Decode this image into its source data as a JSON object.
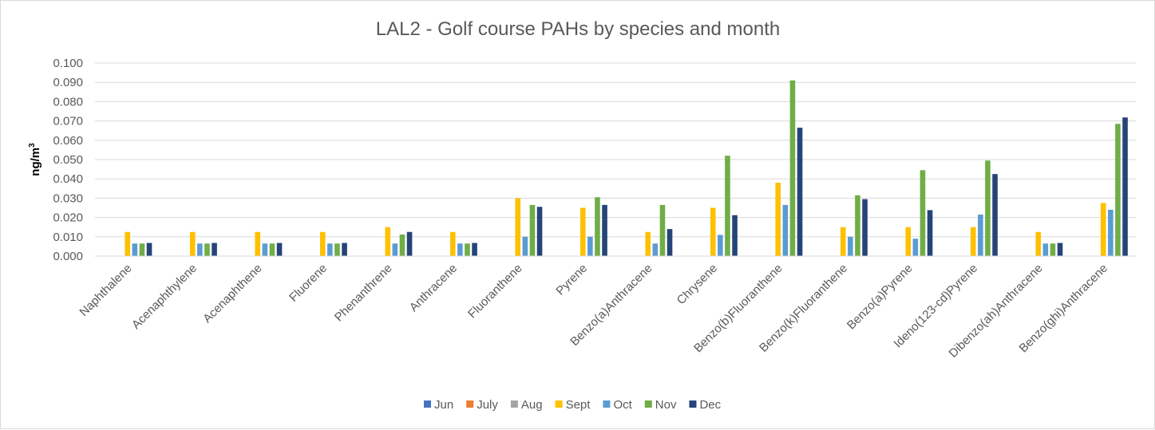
{
  "chart_data": {
    "type": "bar",
    "title": "LAL2 - Golf course PAHs by species and month",
    "xlabel": "",
    "ylabel": "ng/m",
    "ylabel_sup": "3",
    "ylim": [
      0,
      0.1
    ],
    "yticks": [
      "0.000",
      "0.010",
      "0.020",
      "0.030",
      "0.040",
      "0.050",
      "0.060",
      "0.070",
      "0.080",
      "0.090",
      "0.100"
    ],
    "ytick_values": [
      0,
      0.01,
      0.02,
      0.03,
      0.04,
      0.05,
      0.06,
      0.07,
      0.08,
      0.09,
      0.1
    ],
    "grid": true,
    "legend_position": "bottom",
    "categories": [
      "Naphthalene",
      "Acenaphthylene",
      "Acenaphthene",
      "Fluorene",
      "Phenanthrene",
      "Anthracene",
      "Fluoranthene",
      "Pyrene",
      "Benzo(a)Anthracene",
      "Chrysene",
      "Benzo(b)Fluoranthene",
      "Benzo(k)Fluoranthene",
      "Benzo(a)Pyrene",
      "Ideno(123-cd)Pyrene",
      "Dibenzo(ah)Anthracene",
      "Benzo(ghi)Anthracene"
    ],
    "series": [
      {
        "name": "Jun",
        "color": "#4472c4",
        "values": [
          null,
          null,
          null,
          null,
          null,
          null,
          null,
          null,
          null,
          null,
          null,
          null,
          null,
          null,
          null,
          null
        ]
      },
      {
        "name": "July",
        "color": "#ed7d31",
        "values": [
          null,
          null,
          null,
          null,
          null,
          null,
          null,
          null,
          null,
          null,
          null,
          null,
          null,
          null,
          null,
          null
        ]
      },
      {
        "name": "Aug",
        "color": "#a5a5a5",
        "values": [
          null,
          null,
          null,
          null,
          null,
          null,
          null,
          null,
          null,
          null,
          null,
          null,
          null,
          null,
          null,
          null
        ]
      },
      {
        "name": "Sept",
        "color": "#ffc000",
        "values": [
          0.0125,
          0.0125,
          0.0125,
          0.0125,
          0.015,
          0.0125,
          0.03,
          0.025,
          0.0125,
          0.025,
          0.038,
          0.015,
          0.015,
          0.015,
          0.0125,
          0.0275
        ]
      },
      {
        "name": "Oct",
        "color": "#5b9bd5",
        "values": [
          0.0065,
          0.0065,
          0.0065,
          0.0065,
          0.0065,
          0.0065,
          0.01,
          0.01,
          0.0065,
          0.011,
          0.0265,
          0.01,
          0.009,
          0.0215,
          0.0065,
          0.024
        ]
      },
      {
        "name": "Nov",
        "color": "#70ad47",
        "values": [
          0.0065,
          0.0065,
          0.0065,
          0.0065,
          0.0112,
          0.0065,
          0.0265,
          0.0305,
          0.0265,
          0.052,
          0.091,
          0.0315,
          0.0445,
          0.0495,
          0.0065,
          0.0685
        ]
      },
      {
        "name": "Dec",
        "color": "#264478",
        "values": [
          0.0068,
          0.0068,
          0.0068,
          0.0068,
          0.0125,
          0.0068,
          0.0255,
          0.0265,
          0.014,
          0.0212,
          0.0665,
          0.0295,
          0.0238,
          0.0425,
          0.0068,
          0.0718
        ]
      }
    ]
  }
}
